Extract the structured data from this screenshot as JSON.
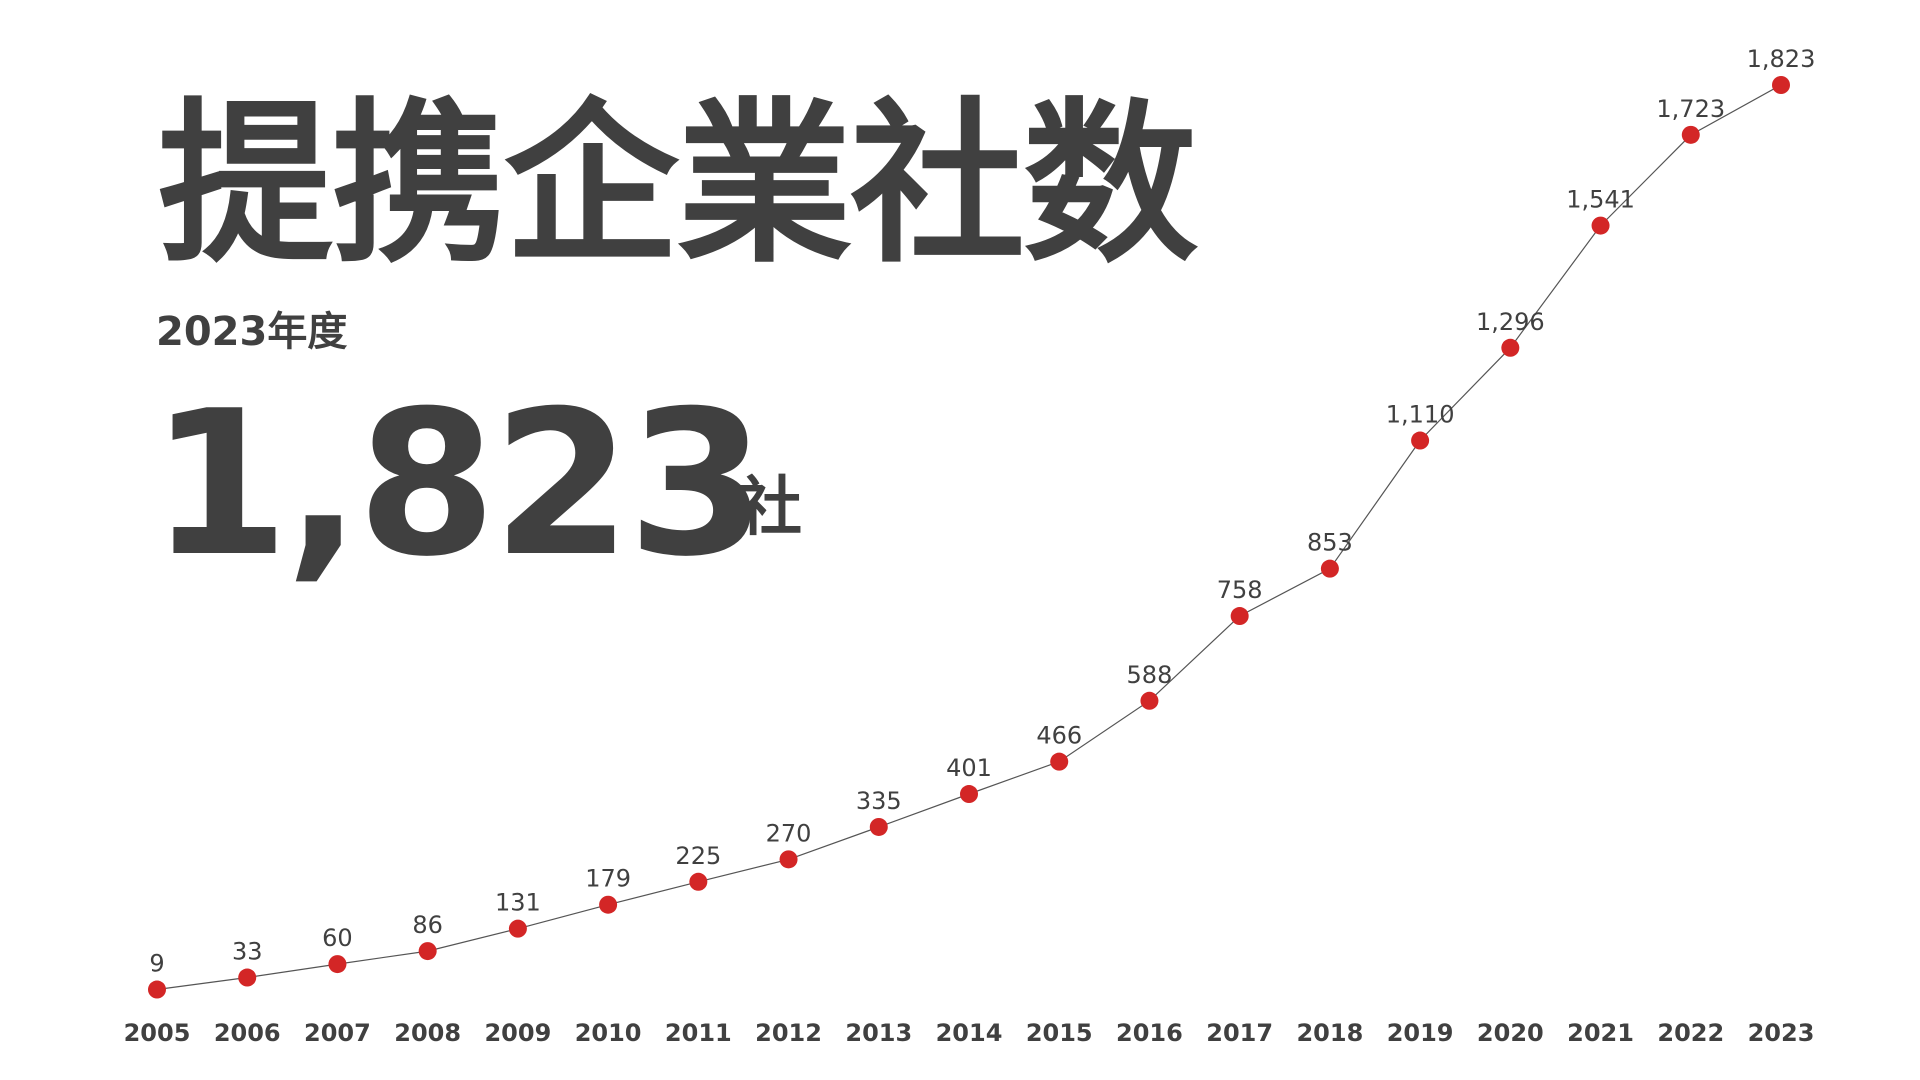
{
  "header": {
    "title": "提携企業社数",
    "period_label": "2023年度",
    "highlight_value": "1,823",
    "highlight_unit": "社"
  },
  "colors": {
    "text": "#404040",
    "marker": "#d32626",
    "line": "#555555"
  },
  "chart_data": {
    "type": "line",
    "title": "",
    "xlabel": "",
    "ylabel": "",
    "x": [
      "2005",
      "2006",
      "2007",
      "2008",
      "2009",
      "2010",
      "2011",
      "2012",
      "2013",
      "2014",
      "2015",
      "2016",
      "2017",
      "2018",
      "2019",
      "2020",
      "2021",
      "2022",
      "2023"
    ],
    "values": [
      9,
      33,
      60,
      86,
      131,
      179,
      225,
      270,
      335,
      401,
      466,
      588,
      758,
      853,
      1110,
      1296,
      1541,
      1723,
      1823
    ],
    "value_labels": [
      "9",
      "33",
      "60",
      "86",
      "131",
      "179",
      "225",
      "270",
      "335",
      "401",
      "466",
      "588",
      "758",
      "853",
      "1,110",
      "1,296",
      "1,541",
      "1,723",
      "1,823"
    ],
    "ylim": [
      0,
      1823
    ],
    "grid": false,
    "legend": "none"
  }
}
